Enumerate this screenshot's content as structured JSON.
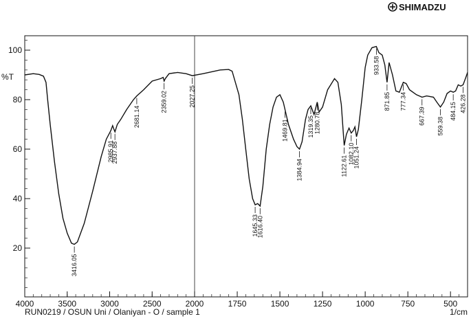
{
  "brand": {
    "name": "SHIMADZU",
    "icon": "shimadzu-logo-icon"
  },
  "chart_data": {
    "type": "line",
    "ylabel": "%T",
    "xunit": "1/cm",
    "caption": "RUN0219 / OSUN Uni / Olaniyan - O /  sample  1",
    "xlim": [
      4000,
      400
    ],
    "ylim": [
      0,
      105
    ],
    "x_ticks": [
      4000,
      3500,
      3000,
      2500,
      2000,
      1750,
      1500,
      1250,
      1000,
      750,
      500
    ],
    "y_ticks": [
      20,
      40,
      60,
      80,
      100
    ],
    "series": [
      {
        "points": [
          [
            4000,
            90
          ],
          [
            3900,
            90.5
          ],
          [
            3830,
            90.2
          ],
          [
            3780,
            89.5
          ],
          [
            3750,
            87
          ],
          [
            3730,
            80
          ],
          [
            3700,
            70
          ],
          [
            3650,
            55
          ],
          [
            3600,
            42
          ],
          [
            3550,
            32
          ],
          [
            3500,
            26
          ],
          [
            3450,
            22
          ],
          [
            3416,
            21.5
          ],
          [
            3380,
            22.5
          ],
          [
            3300,
            30
          ],
          [
            3200,
            43
          ],
          [
            3100,
            57
          ],
          [
            3040,
            64
          ],
          [
            2986,
            67.5
          ],
          [
            2965,
            69.5
          ],
          [
            2950,
            68
          ],
          [
            2938,
            67
          ],
          [
            2910,
            70
          ],
          [
            2870,
            72
          ],
          [
            2800,
            76
          ],
          [
            2720,
            80
          ],
          [
            2681,
            81.5
          ],
          [
            2600,
            84
          ],
          [
            2500,
            87.5
          ],
          [
            2400,
            88.5
          ],
          [
            2370,
            89
          ],
          [
            2359,
            87.5
          ],
          [
            2345,
            88.5
          ],
          [
            2300,
            90.5
          ],
          [
            2200,
            91
          ],
          [
            2100,
            90.5
          ],
          [
            2027,
            89.7
          ],
          [
            1950,
            90.5
          ],
          [
            1850,
            92
          ],
          [
            1800,
            92.2
          ],
          [
            1780,
            91.5
          ],
          [
            1740,
            82
          ],
          [
            1720,
            72
          ],
          [
            1700,
            60
          ],
          [
            1680,
            48
          ],
          [
            1660,
            40
          ],
          [
            1645,
            37.5
          ],
          [
            1630,
            38
          ],
          [
            1616,
            37
          ],
          [
            1600,
            45
          ],
          [
            1580,
            60
          ],
          [
            1560,
            70
          ],
          [
            1540,
            77
          ],
          [
            1520,
            81
          ],
          [
            1500,
            82
          ],
          [
            1480,
            79
          ],
          [
            1470,
            76
          ],
          [
            1450,
            70
          ],
          [
            1420,
            64
          ],
          [
            1400,
            61
          ],
          [
            1385,
            60
          ],
          [
            1370,
            63
          ],
          [
            1350,
            72
          ],
          [
            1335,
            76
          ],
          [
            1319,
            77.5
          ],
          [
            1300,
            74
          ],
          [
            1281,
            79
          ],
          [
            1270,
            75
          ],
          [
            1250,
            77
          ],
          [
            1220,
            84
          ],
          [
            1180,
            88.5
          ],
          [
            1160,
            87
          ],
          [
            1140,
            78
          ],
          [
            1130,
            68
          ],
          [
            1123,
            61.5
          ],
          [
            1110,
            66
          ],
          [
            1095,
            68.5
          ],
          [
            1082,
            66.5
          ],
          [
            1070,
            67.5
          ],
          [
            1060,
            69
          ],
          [
            1051,
            65
          ],
          [
            1040,
            68
          ],
          [
            1020,
            80
          ],
          [
            1000,
            93
          ],
          [
            985,
            98
          ],
          [
            960,
            101
          ],
          [
            935,
            101.5
          ],
          [
            920,
            99
          ],
          [
            900,
            98
          ],
          [
            885,
            94
          ],
          [
            872,
            87
          ],
          [
            860,
            95
          ],
          [
            840,
            90
          ],
          [
            820,
            83.5
          ],
          [
            800,
            83
          ],
          [
            777,
            87
          ],
          [
            760,
            86.5
          ],
          [
            740,
            84
          ],
          [
            700,
            82
          ],
          [
            667,
            81
          ],
          [
            640,
            81.5
          ],
          [
            600,
            81
          ],
          [
            580,
            79
          ],
          [
            559,
            77
          ],
          [
            540,
            79
          ],
          [
            520,
            82.5
          ],
          [
            500,
            83.5
          ],
          [
            484,
            83
          ],
          [
            470,
            83.5
          ],
          [
            455,
            86
          ],
          [
            440,
            85.5
          ],
          [
            426,
            86
          ],
          [
            410,
            89
          ],
          [
            400,
            91
          ]
        ]
      }
    ],
    "peak_labels": [
      {
        "x": 3416,
        "y": 21.5,
        "label": "3416.05"
      },
      {
        "x": 2986,
        "y": 67.5,
        "label": "2985.91"
      },
      {
        "x": 2938,
        "y": 67,
        "label": "2937.88"
      },
      {
        "x": 2681,
        "y": 81.5,
        "label": "2681.14"
      },
      {
        "x": 2359,
        "y": 87.5,
        "label": "2359.02"
      },
      {
        "x": 2027,
        "y": 89.7,
        "label": "2027.25"
      },
      {
        "x": 1645,
        "y": 37.5,
        "label": "1645.33"
      },
      {
        "x": 1616,
        "y": 37,
        "label": "1616.40"
      },
      {
        "x": 1470,
        "y": 76,
        "label": "1469.81"
      },
      {
        "x": 1385,
        "y": 60,
        "label": "1384.94"
      },
      {
        "x": 1319,
        "y": 77.5,
        "label": "1319.35"
      },
      {
        "x": 1281,
        "y": 79,
        "label": "1280.78"
      },
      {
        "x": 1123,
        "y": 61.5,
        "label": "1122.61"
      },
      {
        "x": 1082,
        "y": 66.5,
        "label": "1082.10"
      },
      {
        "x": 1051,
        "y": 65,
        "label": "1051.24"
      },
      {
        "x": 934,
        "y": 101.5,
        "label": "933.58"
      },
      {
        "x": 872,
        "y": 87,
        "label": "871.85"
      },
      {
        "x": 777,
        "y": 87,
        "label": "777.34"
      },
      {
        "x": 667,
        "y": 81,
        "label": "667.39"
      },
      {
        "x": 559,
        "y": 77,
        "label": "559.38"
      },
      {
        "x": 484,
        "y": 83,
        "label": "484.15"
      },
      {
        "x": 426,
        "y": 86,
        "label": "426.28"
      }
    ]
  }
}
